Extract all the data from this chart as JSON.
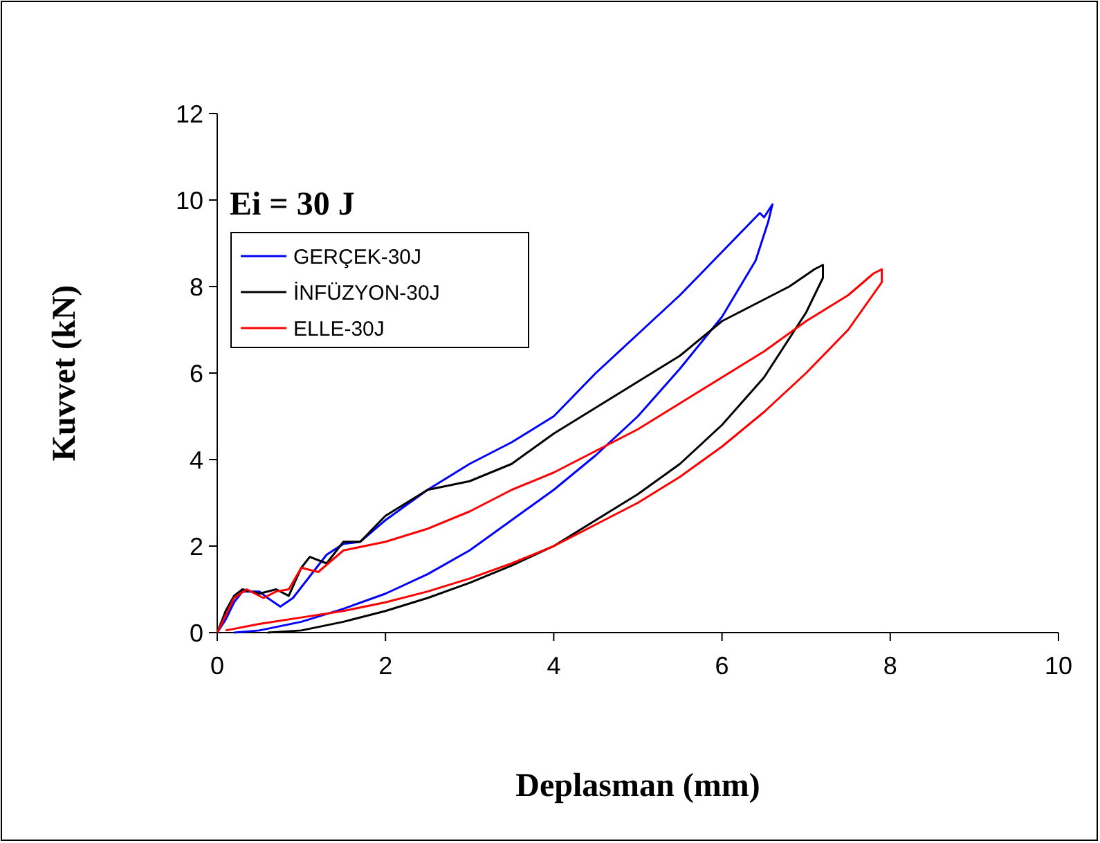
{
  "chart_data": {
    "type": "line",
    "xlabel": "Deplasman (mm)",
    "ylabel": "Kuvvet (kN)",
    "annotations": [
      "Ei = 30 J"
    ],
    "xlim": [
      0,
      10
    ],
    "xticks": [
      0,
      2,
      4,
      6,
      8,
      10
    ],
    "ylim": [
      0,
      12
    ],
    "yticks": [
      0,
      2,
      4,
      6,
      8,
      10,
      12
    ],
    "grid": false,
    "legend": "top left",
    "marker": "none",
    "line_style": "solid",
    "series": [
      {
        "name": "GERÇEK-30J",
        "color": "#0000ff",
        "x": [
          0,
          0.1,
          0.2,
          0.3,
          0.5,
          0.6,
          0.75,
          0.9,
          1.1,
          1.3,
          1.5,
          1.7,
          2,
          2.5,
          3,
          3.5,
          4,
          4.5,
          5,
          5.5,
          6,
          6.3,
          6.45,
          6.5,
          6.6,
          6.55,
          6.4,
          6,
          5.5,
          5,
          4.5,
          4,
          3.5,
          3,
          2.5,
          2,
          1.5,
          1,
          0.5,
          0.2
        ],
        "values": [
          0,
          0.3,
          0.7,
          0.95,
          0.95,
          0.8,
          0.6,
          0.8,
          1.3,
          1.8,
          2.05,
          2.1,
          2.6,
          3.3,
          3.9,
          4.4,
          5.0,
          6.0,
          6.9,
          7.8,
          8.8,
          9.4,
          9.7,
          9.6,
          9.9,
          9.5,
          8.6,
          7.3,
          6.1,
          5.0,
          4.1,
          3.3,
          2.6,
          1.9,
          1.35,
          0.9,
          0.55,
          0.25,
          0.05,
          0
        ]
      },
      {
        "name": "İNFÜZYON-30J",
        "color": "#000000",
        "x": [
          0,
          0.1,
          0.2,
          0.3,
          0.5,
          0.7,
          0.85,
          1.0,
          1.1,
          1.3,
          1.5,
          1.7,
          2,
          2.5,
          3,
          3.5,
          4,
          4.5,
          5,
          5.5,
          6,
          6.5,
          6.8,
          7.1,
          7.2,
          7.2,
          7.0,
          6.5,
          6,
          5.5,
          5,
          4.5,
          4,
          3.5,
          3,
          2.5,
          2,
          1.5,
          1,
          0.6
        ],
        "values": [
          0,
          0.5,
          0.85,
          1.0,
          0.9,
          1.0,
          0.85,
          1.5,
          1.75,
          1.6,
          2.1,
          2.1,
          2.7,
          3.3,
          3.5,
          3.9,
          4.6,
          5.2,
          5.8,
          6.4,
          7.2,
          7.7,
          8.0,
          8.4,
          8.5,
          8.2,
          7.4,
          5.9,
          4.8,
          3.9,
          3.2,
          2.6,
          2.0,
          1.55,
          1.15,
          0.8,
          0.5,
          0.25,
          0.05,
          0
        ]
      },
      {
        "name": "ELLE-30J",
        "color": "#ff0000",
        "x": [
          0,
          0.1,
          0.2,
          0.35,
          0.55,
          0.7,
          0.85,
          1.0,
          1.2,
          1.5,
          2,
          2.5,
          3,
          3.5,
          4,
          4.5,
          5,
          5.5,
          6,
          6.5,
          7,
          7.5,
          7.8,
          7.9,
          7.9,
          7.5,
          7,
          6.5,
          6,
          5.5,
          5,
          4.5,
          4,
          3.5,
          3,
          2.5,
          2,
          1.5,
          1,
          0.5,
          0.1
        ],
        "values": [
          0,
          0.4,
          0.8,
          1.0,
          0.8,
          0.95,
          1.0,
          1.5,
          1.4,
          1.9,
          2.1,
          2.4,
          2.8,
          3.3,
          3.7,
          4.2,
          4.7,
          5.3,
          5.9,
          6.5,
          7.2,
          7.8,
          8.3,
          8.4,
          8.1,
          7.0,
          6.0,
          5.1,
          4.3,
          3.6,
          3.0,
          2.5,
          2.0,
          1.6,
          1.25,
          0.95,
          0.7,
          0.5,
          0.35,
          0.2,
          0.05
        ]
      }
    ]
  }
}
